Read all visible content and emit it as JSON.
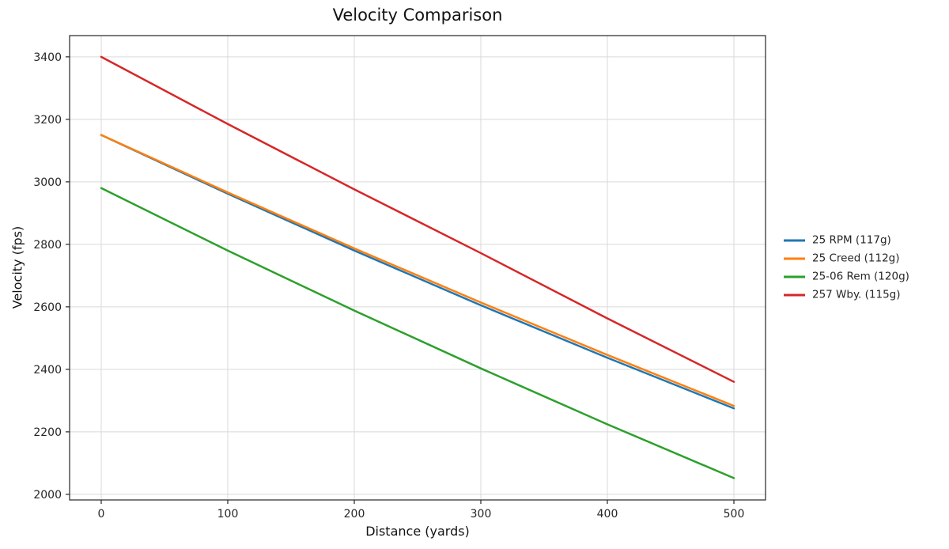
{
  "chart_data": {
    "type": "line",
    "title": "Velocity Comparison",
    "xlabel": "Distance (yards)",
    "ylabel": "Velocity (fps)",
    "x": [
      0,
      100,
      200,
      300,
      400,
      500
    ],
    "series": [
      {
        "name": "25 RPM (117g)",
        "color": "#1f77b4",
        "values": [
          3150,
          2962,
          2780,
          2605,
          2437,
          2275
        ]
      },
      {
        "name": "25 Creed (112g)",
        "color": "#ff7f0e",
        "values": [
          3150,
          2966,
          2787,
          2614,
          2446,
          2283
        ]
      },
      {
        "name": "25-06 Rem (120g)",
        "color": "#2ca02c",
        "values": [
          2980,
          2780,
          2588,
          2403,
          2224,
          2052
        ]
      },
      {
        "name": "257 Wby. (115g)",
        "color": "#d62728",
        "values": [
          3400,
          3185,
          2976,
          2772,
          2563,
          2360
        ]
      }
    ],
    "xlim": [
      -25,
      525
    ],
    "ylim": [
      1982,
      3468
    ],
    "xticks": [
      0,
      100,
      200,
      300,
      400,
      500
    ],
    "yticks": [
      2000,
      2200,
      2400,
      2600,
      2800,
      3000,
      3200,
      3400
    ],
    "grid": true,
    "grid_color": "#d9d9d9",
    "axis_color": "#262626",
    "line_width": 2.5,
    "legend_position": "center right, outside plot"
  }
}
